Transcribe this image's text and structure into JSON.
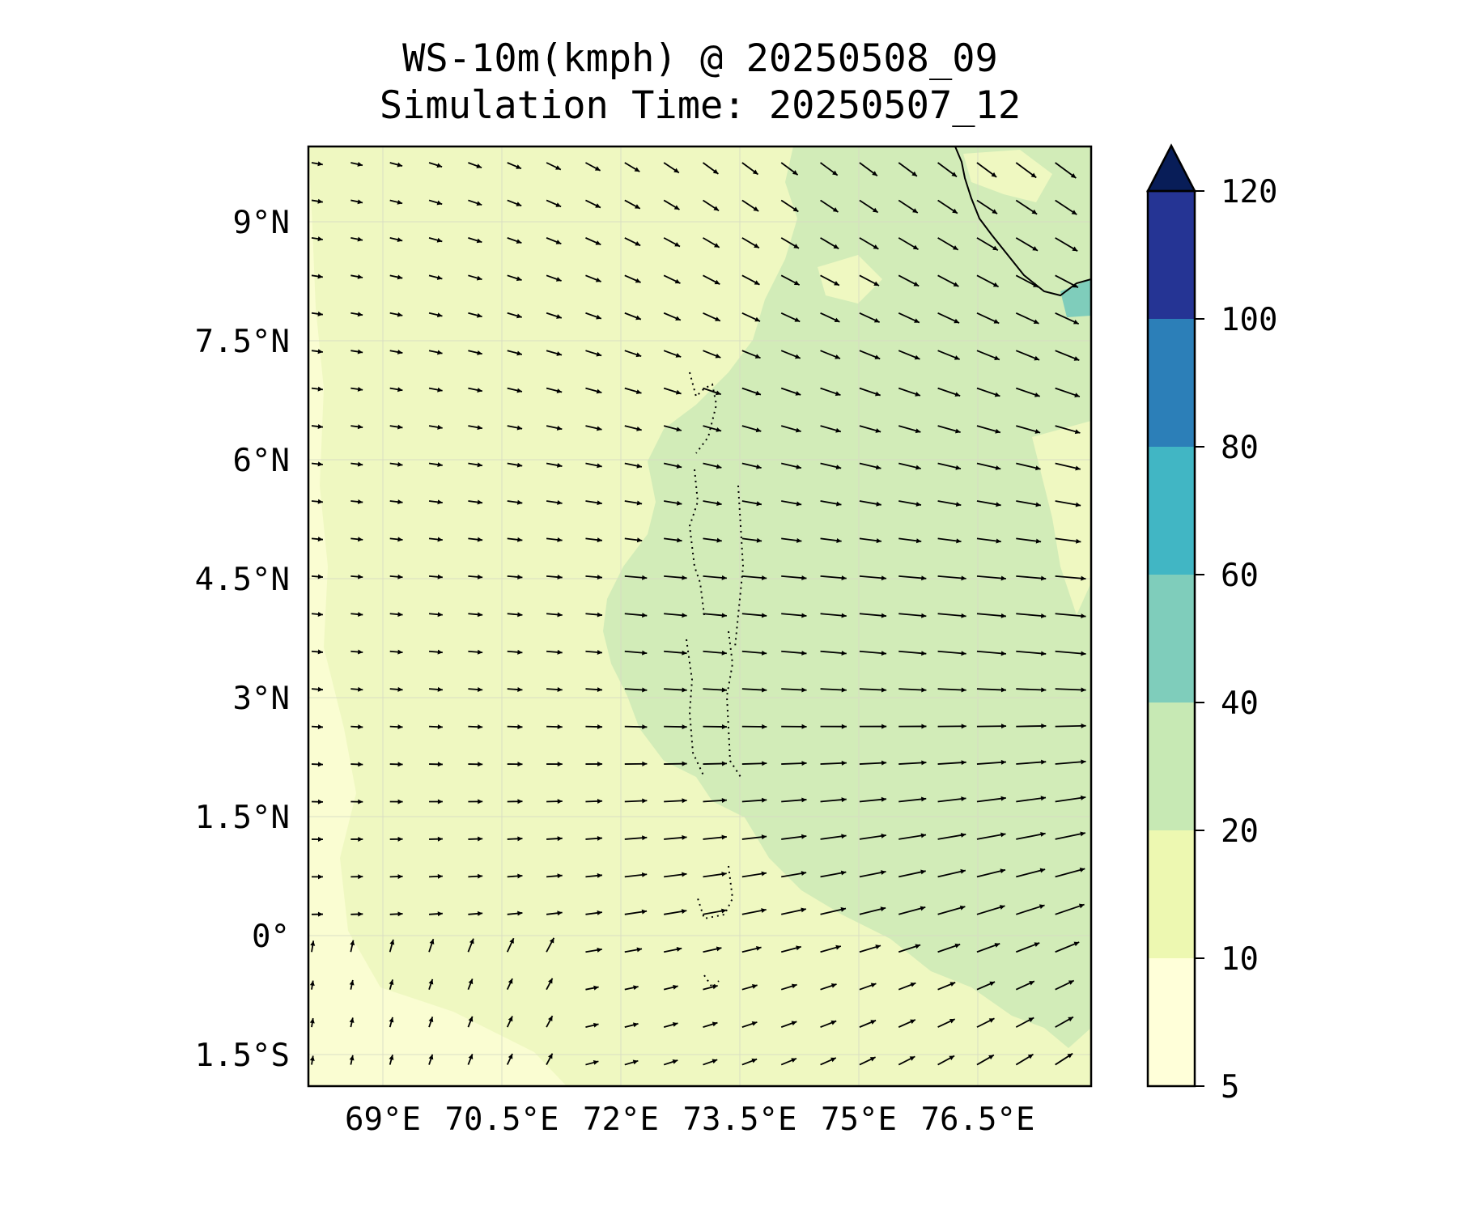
{
  "title": {
    "line1": "WS-10m(kmph) @ 20250508_09",
    "line2": "Simulation Time: 20250507_12"
  },
  "map": {
    "variable": "10 m wind speed",
    "units": "kmph",
    "lon_range": [
      67.7,
      78.0
    ],
    "lat_range": [
      -1.95,
      9.85
    ],
    "lon_ticks": [
      69,
      70.5,
      72,
      73.5,
      75,
      76.5
    ],
    "lon_tick_labels": [
      "69°E",
      "70.5°E",
      "72°E",
      "73.5°E",
      "75°E",
      "76.5°E"
    ],
    "lat_ticks": [
      9,
      7.5,
      6,
      4.5,
      3,
      1.5,
      0,
      -1.5
    ],
    "lat_tick_labels": [
      "9°N",
      "7.5°N",
      "6°N",
      "4.5°N",
      "3°N",
      "1.5°N",
      "0°",
      "1.5°S"
    ],
    "gridlines": true,
    "wind_vectors": true,
    "coastline": true,
    "dominant_wind": "westerly to west-northwesterly, turning northwesterly in the north and southwesterly in the south-east",
    "speed_regions": [
      {
        "range": "5-10",
        "area": "south-west corner"
      },
      {
        "range": "10-20",
        "area": "western half"
      },
      {
        "range": "20-40",
        "area": "central and eastern half"
      },
      {
        "range": "40-60",
        "area": "small patch near 8°N, 77.8°E"
      }
    ]
  },
  "colorbar": {
    "levels": [
      5,
      10,
      20,
      40,
      60,
      80,
      100,
      120
    ],
    "tick_labels": [
      "5",
      "10",
      "20",
      "40",
      "60",
      "80",
      "100",
      "120"
    ],
    "colors": [
      "#ffffd9",
      "#edf8b1",
      "#c7e9b4",
      "#7fcdbb",
      "#41b6c4",
      "#2c7fb8",
      "#253494"
    ],
    "extend_color": "#081d58",
    "extend": "max"
  },
  "colors": {
    "very_light": "#ffffd9",
    "low": "#eff8c1",
    "mid": "#d2ecb8",
    "high": "#7fcdbb"
  }
}
